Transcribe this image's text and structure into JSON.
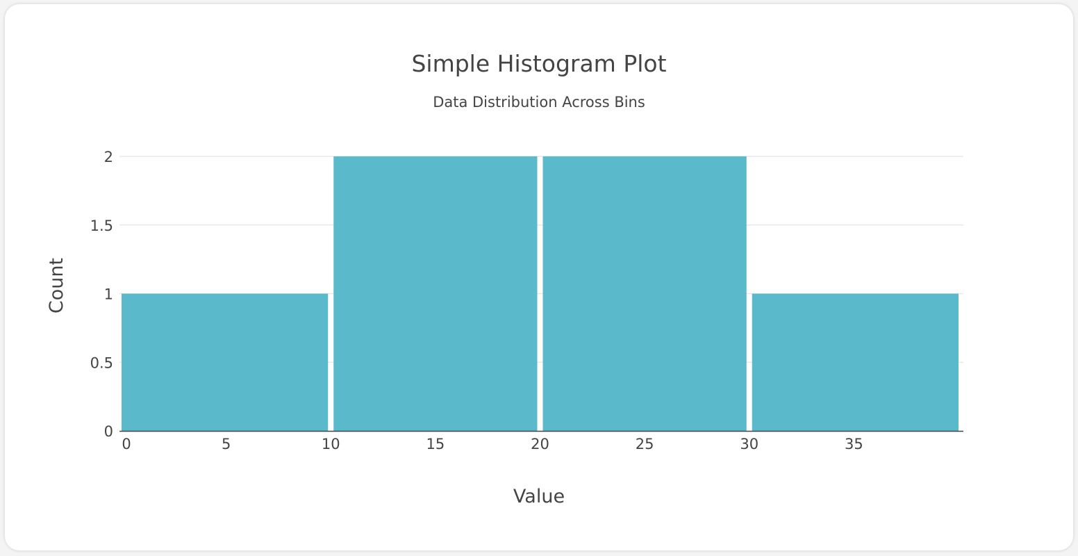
{
  "chart_data": {
    "type": "bar",
    "title": "Simple Histogram Plot",
    "subtitle": "Data Distribution Across Bins",
    "xlabel": "Value",
    "ylabel": "Count",
    "bins": [
      {
        "start": 0,
        "end": 10,
        "count": 1
      },
      {
        "start": 10,
        "end": 20,
        "count": 2
      },
      {
        "start": 20,
        "end": 30,
        "count": 2
      },
      {
        "start": 30,
        "end": 40,
        "count": 1
      }
    ],
    "xlim": [
      0,
      40
    ],
    "ylim": [
      0,
      2
    ],
    "xticks": [
      0,
      5,
      10,
      15,
      20,
      25,
      30,
      35
    ],
    "yticks": [
      0,
      0.5,
      1,
      1.5,
      2
    ],
    "ytick_labels": [
      "0",
      "0.5",
      "1",
      "1.5",
      "2"
    ],
    "grid": true,
    "bar_color": "#5abacc",
    "grid_color": "#e8e8e8",
    "axis_color": "#444444"
  }
}
